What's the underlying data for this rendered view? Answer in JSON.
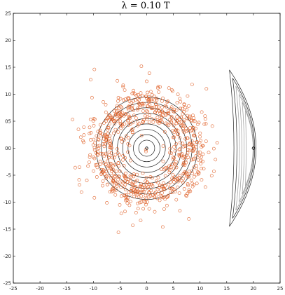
{
  "chart_data": {
    "type": "scatter",
    "title": "λ = 0.10 T",
    "xlabel": "",
    "ylabel": "",
    "xlim": [
      -25,
      25
    ],
    "ylim": [
      -25,
      25
    ],
    "x_ticks": [
      -25,
      -20,
      -15,
      -10,
      -5,
      0,
      5,
      10,
      15,
      20,
      25
    ],
    "y_ticks": [
      -25,
      -20,
      -15,
      -10,
      -5,
      0,
      5,
      10,
      15,
      20,
      25
    ],
    "x_tick_labels": [
      "-25",
      "-20",
      "-15",
      "-10",
      "-5",
      "0",
      "5",
      "10",
      "15",
      "20",
      "25"
    ],
    "y_tick_labels": [
      "-25",
      "-20",
      "-15",
      "-10",
      "-5",
      "00",
      "05",
      "10",
      "15",
      "20",
      "25"
    ],
    "grid": false,
    "colors": {
      "points": "#e0622a",
      "contour_dark": "#222222",
      "contour_light": "#9a9a9a"
    },
    "contour_sets": [
      {
        "name": "",
        "shape": "circle",
        "center": [
          0,
          0
        ],
        "radii": [
          1.5,
          2.5,
          3.5,
          4.5,
          5.5,
          6.5,
          7.5,
          8.5,
          9.5
        ]
      },
      {
        "name": "",
        "shape": "crescent",
        "center": [
          20,
          0
        ],
        "levels": [
          {
            "outer_x": 22.5,
            "inner_x": 19.0,
            "half_height": 14.5
          },
          {
            "outer_x": 22.0,
            "inner_x": 19.4,
            "half_height": 13.0
          },
          {
            "outer_x": 21.6,
            "inner_x": 19.7,
            "half_height": 11.5
          },
          {
            "outer_x": 21.2,
            "inner_x": 19.9,
            "half_height": 10.0
          },
          {
            "outer_x": 20.9,
            "inner_x": 20.1,
            "half_height": 8.5
          },
          {
            "outer_x": 20.7,
            "inner_x": 20.2,
            "half_height": 7.0
          }
        ]
      }
    ],
    "centers": [
      [
        0,
        0
      ],
      [
        20,
        0
      ]
    ],
    "scatter_series": {
      "name": "",
      "count": 800,
      "center": [
        0,
        0
      ],
      "radius_mean": 8.5,
      "radius_spread": 2.6,
      "points_sample": [
        [
          -1.0,
          15.2
        ],
        [
          0.5,
          13.9
        ],
        [
          -9.8,
          14.6
        ],
        [
          -13.9,
          5.3
        ],
        [
          -12.8,
          3.5
        ],
        [
          -10.5,
          12.7
        ],
        [
          -5.5,
          12.5
        ],
        [
          0.0,
          12.4
        ],
        [
          8.5,
          11.8
        ],
        [
          11.2,
          11.0
        ],
        [
          12.3,
          4.1
        ],
        [
          13.2,
          1.0
        ],
        [
          12.6,
          -4.3
        ],
        [
          11.0,
          -7.2
        ],
        [
          7.9,
          -13.1
        ],
        [
          3.0,
          -14.6
        ],
        [
          -2.6,
          -14.3
        ],
        [
          -5.3,
          -15.6
        ],
        [
          -9.8,
          -9.2
        ],
        [
          -13.4,
          -3.6
        ]
      ]
    }
  }
}
